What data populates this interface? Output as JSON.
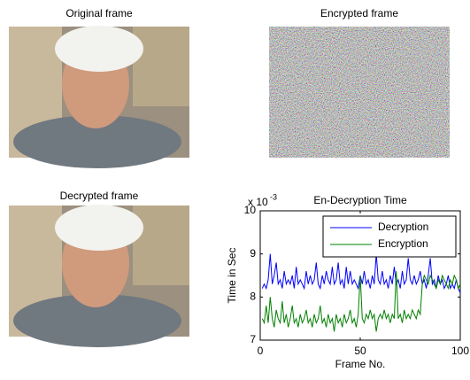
{
  "panels": [
    {
      "title": "Original frame"
    },
    {
      "title": "Encrypted frame"
    },
    {
      "title": "Decrypted frame"
    }
  ],
  "chart_data": {
    "type": "line",
    "title": "En-Decryption Time",
    "y_scale_label": "x 10",
    "y_scale_exponent": "-3",
    "xlabel": "Frame No.",
    "ylabel": "Time in Sec",
    "xlim": [
      0,
      100
    ],
    "xticks": [
      0,
      50,
      100
    ],
    "ylim": [
      7,
      10
    ],
    "yticks": [
      7,
      8,
      9,
      10
    ],
    "legend": "top-right",
    "x": [
      1,
      2,
      3,
      4,
      5,
      6,
      7,
      8,
      9,
      10,
      11,
      12,
      13,
      14,
      15,
      16,
      17,
      18,
      19,
      20,
      21,
      22,
      23,
      24,
      25,
      26,
      27,
      28,
      29,
      30,
      31,
      32,
      33,
      34,
      35,
      36,
      37,
      38,
      39,
      40,
      41,
      42,
      43,
      44,
      45,
      46,
      47,
      48,
      49,
      50,
      51,
      52,
      53,
      54,
      55,
      56,
      57,
      58,
      59,
      60,
      61,
      62,
      63,
      64,
      65,
      66,
      67,
      68,
      69,
      70,
      71,
      72,
      73,
      74,
      75,
      76,
      77,
      78,
      79,
      80,
      81,
      82,
      83,
      84,
      85,
      86,
      87,
      88,
      89,
      90,
      91,
      92,
      93,
      94,
      95,
      96,
      97,
      98,
      99,
      100
    ],
    "series": [
      {
        "name": "Decryption",
        "color": "#0000ff",
        "values": [
          8.2,
          8.3,
          8.2,
          8.4,
          9.0,
          8.3,
          8.5,
          8.8,
          8.3,
          8.4,
          8.2,
          8.6,
          8.3,
          8.4,
          8.3,
          8.5,
          8.2,
          8.7,
          8.3,
          8.4,
          8.3,
          8.2,
          8.6,
          8.3,
          8.5,
          8.3,
          8.4,
          8.8,
          8.3,
          8.2,
          8.5,
          8.3,
          8.6,
          8.4,
          8.3,
          8.7,
          8.3,
          8.4,
          8.8,
          8.3,
          8.4,
          8.2,
          8.7,
          8.3,
          8.6,
          8.3,
          8.4,
          8.3,
          8.2,
          8.5,
          8.3,
          8.6,
          8.3,
          8.4,
          8.2,
          8.5,
          8.3,
          9.0,
          8.4,
          8.3,
          8.6,
          8.3,
          8.4,
          8.2,
          8.5,
          8.3,
          8.7,
          8.3,
          8.4,
          8.2,
          8.6,
          8.3,
          8.4,
          8.9,
          8.4,
          8.3,
          8.5,
          8.3,
          8.4,
          8.6,
          8.3,
          8.4,
          8.2,
          8.5,
          8.9,
          8.3,
          8.4,
          8.2,
          8.5,
          8.3,
          8.4,
          8.2,
          8.3,
          8.5,
          8.2,
          8.3,
          8.2,
          8.4,
          8.2,
          8.1
        ]
      },
      {
        "name": "Encryption",
        "color": "#008000",
        "values": [
          7.5,
          7.4,
          7.8,
          7.4,
          8.0,
          7.5,
          7.3,
          7.7,
          7.5,
          7.4,
          7.9,
          7.4,
          7.6,
          7.3,
          7.5,
          7.8,
          7.4,
          7.5,
          7.3,
          7.6,
          7.4,
          7.5,
          7.7,
          7.4,
          7.5,
          7.3,
          7.6,
          7.4,
          7.5,
          7.8,
          7.4,
          7.5,
          7.3,
          7.6,
          7.4,
          7.5,
          7.2,
          7.6,
          7.4,
          7.5,
          7.3,
          7.6,
          7.4,
          7.5,
          7.7,
          7.4,
          7.5,
          7.3,
          7.6,
          8.5,
          7.5,
          7.4,
          7.6,
          7.5,
          7.7,
          7.5,
          7.6,
          7.2,
          7.5,
          7.6,
          7.5,
          7.7,
          7.5,
          7.6,
          7.4,
          7.6,
          7.5,
          8.6,
          7.5,
          7.6,
          7.4,
          7.7,
          7.5,
          7.6,
          7.5,
          7.7,
          7.6,
          7.5,
          7.7,
          7.6,
          8.3,
          8.5,
          8.4,
          8.3,
          8.5,
          8.4,
          8.3,
          8.2,
          8.4,
          8.3,
          8.5,
          8.4,
          8.3,
          8.2,
          8.4,
          8.3,
          8.5,
          8.4,
          8.2,
          8.3
        ]
      }
    ]
  }
}
